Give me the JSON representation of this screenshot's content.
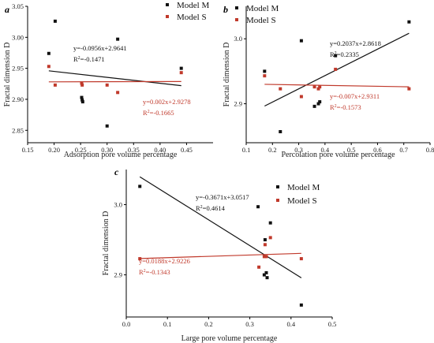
{
  "chart_data": [
    {
      "type": "scatter",
      "panel": "a",
      "xlabel": "Adsorption pore volume percentage",
      "ylabel": "Fractal dimension D",
      "xlim": [
        0.15,
        0.5
      ],
      "ylim": [
        2.83,
        3.05
      ],
      "x_ticks": [
        "0.15",
        "0.20",
        "0.25",
        "0.30",
        "0.35",
        "0.40",
        "0.45"
      ],
      "y_ticks": [
        "2.85",
        "2.90",
        "2.95",
        "3.00",
        "3.05"
      ],
      "legend_position": "top-right",
      "series": [
        {
          "name": "Model M",
          "color": "#111111",
          "points": [
            {
              "x": 0.19,
              "y": 2.974
            },
            {
              "x": 0.202,
              "y": 3.026
            },
            {
              "x": 0.252,
              "y": 2.903
            },
            {
              "x": 0.253,
              "y": 2.899
            },
            {
              "x": 0.254,
              "y": 2.896
            },
            {
              "x": 0.3,
              "y": 2.857
            },
            {
              "x": 0.32,
              "y": 2.997
            },
            {
              "x": 0.44,
              "y": 2.95
            }
          ],
          "fit": {
            "equation": "y=-0.0956x+2.9641",
            "r2_prefix": "R",
            "r2_sup": "2",
            "r2_value": "=-0.1471",
            "line_color": "#111111",
            "slope": -0.0956,
            "intercept": 2.9641,
            "x_range": [
              0.19,
              0.44
            ]
          }
        },
        {
          "name": "Model S",
          "color": "#c0392b",
          "points": [
            {
              "x": 0.19,
              "y": 2.953
            },
            {
              "x": 0.202,
              "y": 2.923
            },
            {
              "x": 0.252,
              "y": 2.926
            },
            {
              "x": 0.253,
              "y": 2.923
            },
            {
              "x": 0.3,
              "y": 2.923
            },
            {
              "x": 0.32,
              "y": 2.911
            },
            {
              "x": 0.44,
              "y": 2.943
            }
          ],
          "fit": {
            "equation": "y=0.002x+2.9278",
            "r2_prefix": "R",
            "r2_sup": "2",
            "r2_value": "=-0.1665",
            "line_color": "#c0392b",
            "slope": 0.002,
            "intercept": 2.9278,
            "x_range": [
              0.19,
              0.44
            ]
          }
        }
      ]
    },
    {
      "type": "scatter",
      "panel": "b",
      "xlabel": "Percolation pore volume percentage",
      "ylabel": "Fractal dimension D",
      "xlim": [
        0.1,
        0.8
      ],
      "ylim": [
        2.84,
        3.05
      ],
      "x_ticks": [
        "0.1",
        "0.2",
        "0.3",
        "0.4",
        "0.5",
        "0.6",
        "0.7",
        "0.8"
      ],
      "y_ticks": [
        "2.9",
        "3.0"
      ],
      "legend_position": "top-left",
      "series": [
        {
          "name": "Model M",
          "color": "#111111",
          "points": [
            {
              "x": 0.17,
              "y": 2.95
            },
            {
              "x": 0.23,
              "y": 2.857
            },
            {
              "x": 0.31,
              "y": 2.997
            },
            {
              "x": 0.36,
              "y": 2.896
            },
            {
              "x": 0.375,
              "y": 2.9
            },
            {
              "x": 0.38,
              "y": 2.903
            },
            {
              "x": 0.44,
              "y": 2.974
            },
            {
              "x": 0.72,
              "y": 3.026
            }
          ],
          "fit": {
            "equation": "y=0.2037x+2.8618",
            "r2_prefix": "R",
            "r2_sup": "2",
            "r2_value": "=0.2335",
            "line_color": "#111111",
            "slope": 0.2037,
            "intercept": 2.8618,
            "x_range": [
              0.17,
              0.72
            ]
          }
        },
        {
          "name": "Model S",
          "color": "#c0392b",
          "points": [
            {
              "x": 0.17,
              "y": 2.943
            },
            {
              "x": 0.23,
              "y": 2.923
            },
            {
              "x": 0.31,
              "y": 2.911
            },
            {
              "x": 0.36,
              "y": 2.926
            },
            {
              "x": 0.375,
              "y": 2.923
            },
            {
              "x": 0.38,
              "y": 2.926
            },
            {
              "x": 0.44,
              "y": 2.953
            },
            {
              "x": 0.72,
              "y": 2.923
            }
          ],
          "fit": {
            "equation": "y=-0.007x+2.9311",
            "r2_prefix": "R",
            "r2_sup": "2",
            "r2_value": "=-0.1573",
            "line_color": "#c0392b",
            "slope": -0.007,
            "intercept": 2.9311,
            "x_range": [
              0.17,
              0.72
            ]
          }
        }
      ]
    },
    {
      "type": "scatter",
      "panel": "c",
      "xlabel": "Large pore volume percentage",
      "ylabel": "Fractal dimension D",
      "xlim": [
        0.0,
        0.5
      ],
      "ylim": [
        2.84,
        3.05
      ],
      "x_ticks": [
        "0.0",
        "0.1",
        "0.2",
        "0.3",
        "0.4",
        "0.5"
      ],
      "y_ticks": [
        "2.9",
        "3.0"
      ],
      "legend_position": "top-right",
      "series": [
        {
          "name": "Model M",
          "color": "#111111",
          "points": [
            {
              "x": 0.033,
              "y": 3.026
            },
            {
              "x": 0.32,
              "y": 2.997
            },
            {
              "x": 0.335,
              "y": 2.9
            },
            {
              "x": 0.337,
              "y": 2.95
            },
            {
              "x": 0.34,
              "y": 2.903
            },
            {
              "x": 0.342,
              "y": 2.896
            },
            {
              "x": 0.35,
              "y": 2.974
            },
            {
              "x": 0.425,
              "y": 2.857
            }
          ],
          "fit": {
            "equation": "y=-0.3671x+3.0517",
            "r2_prefix": "R",
            "r2_sup": "2",
            "r2_value": "=0.4614",
            "line_color": "#111111",
            "slope": -0.3671,
            "intercept": 3.0517,
            "x_range": [
              0.033,
              0.425
            ]
          }
        },
        {
          "name": "Model S",
          "color": "#c0392b",
          "points": [
            {
              "x": 0.033,
              "y": 2.923
            },
            {
              "x": 0.322,
              "y": 2.911
            },
            {
              "x": 0.335,
              "y": 2.926
            },
            {
              "x": 0.337,
              "y": 2.943
            },
            {
              "x": 0.34,
              "y": 2.926
            },
            {
              "x": 0.35,
              "y": 2.953
            },
            {
              "x": 0.425,
              "y": 2.923
            }
          ],
          "fit": {
            "equation": "y=0.0188x+2.9226",
            "r2_prefix": "R",
            "r2_sup": "2",
            "r2_value": "=-0.1343",
            "line_color": "#c0392b",
            "slope": 0.0188,
            "intercept": 2.9226,
            "x_range": [
              0.033,
              0.425
            ]
          }
        }
      ]
    }
  ]
}
